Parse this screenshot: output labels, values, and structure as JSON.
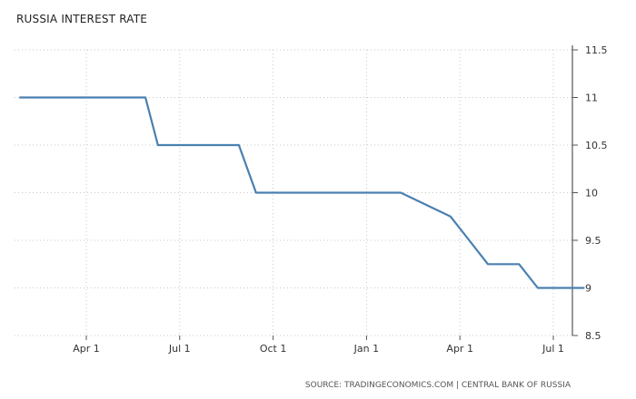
{
  "chart_data": {
    "type": "line",
    "title": "RUSSIA INTEREST RATE",
    "source": "SOURCE: TRADINGECONOMICS.COM | CENTRAL BANK OF RUSSIA",
    "xlabel": "",
    "ylabel": "",
    "x_axis": {
      "ticks": [
        {
          "label": "Apr 1",
          "t": 3
        },
        {
          "label": "Jul 1",
          "t": 6
        },
        {
          "label": "Oct 1",
          "t": 9
        },
        {
          "label": "Jan 1",
          "t": 12
        },
        {
          "label": "Apr 1",
          "t": 15
        },
        {
          "label": "Jul 1",
          "t": 18
        }
      ],
      "range": [
        0.85,
        19.0
      ]
    },
    "y_axis": {
      "ticks": [
        8.5,
        9,
        9.5,
        10,
        10.5,
        11,
        11.5
      ],
      "range": [
        8.5,
        11.5
      ],
      "position": "right"
    },
    "grid": true,
    "legend": "none",
    "color": "#4a80b0",
    "series": [
      {
        "points": [
          {
            "t": 0.85,
            "y": 11
          },
          {
            "t": 4.9,
            "y": 11
          },
          {
            "t": 5.3,
            "y": 10.5
          },
          {
            "t": 7.9,
            "y": 10.5
          },
          {
            "t": 8.45,
            "y": 10
          },
          {
            "t": 13.1,
            "y": 10
          },
          {
            "t": 14.7,
            "y": 9.75
          },
          {
            "t": 15.9,
            "y": 9.25
          },
          {
            "t": 16.9,
            "y": 9.25
          },
          {
            "t": 17.5,
            "y": 9
          },
          {
            "t": 19.0,
            "y": 9
          }
        ]
      }
    ]
  }
}
